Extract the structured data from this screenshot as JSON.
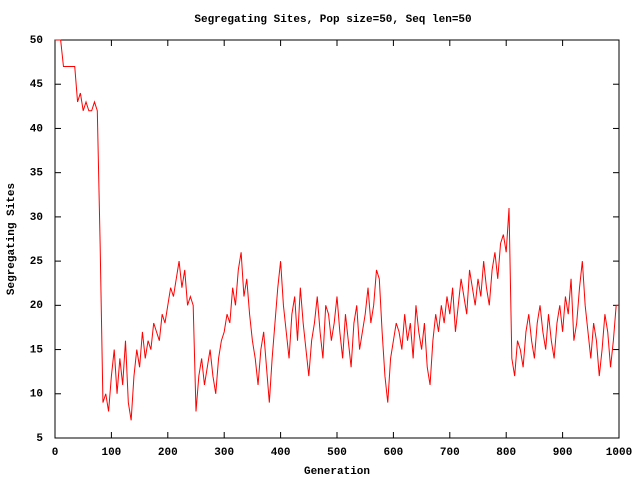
{
  "chart_data": {
    "type": "line",
    "title": "Segregating Sites, Pop size=50, Seq len=50",
    "xlabel": "Generation",
    "ylabel": "Segregating Sites",
    "x": [
      0,
      5,
      10,
      15,
      20,
      25,
      30,
      35,
      40,
      45,
      50,
      55,
      60,
      65,
      70,
      75,
      80,
      85,
      90,
      95,
      100,
      105,
      110,
      115,
      120,
      125,
      130,
      135,
      140,
      145,
      150,
      155,
      160,
      165,
      170,
      175,
      180,
      185,
      190,
      195,
      200,
      205,
      210,
      215,
      220,
      225,
      230,
      235,
      240,
      245,
      250,
      255,
      260,
      265,
      270,
      275,
      280,
      285,
      290,
      295,
      300,
      305,
      310,
      315,
      320,
      325,
      330,
      335,
      340,
      345,
      350,
      355,
      360,
      365,
      370,
      375,
      380,
      385,
      390,
      395,
      400,
      405,
      410,
      415,
      420,
      425,
      430,
      435,
      440,
      445,
      450,
      455,
      460,
      465,
      470,
      475,
      480,
      485,
      490,
      495,
      500,
      505,
      510,
      515,
      520,
      525,
      530,
      535,
      540,
      545,
      550,
      555,
      560,
      565,
      570,
      575,
      580,
      585,
      590,
      595,
      600,
      605,
      610,
      615,
      620,
      625,
      630,
      635,
      640,
      645,
      650,
      655,
      660,
      665,
      670,
      675,
      680,
      685,
      690,
      695,
      700,
      705,
      710,
      715,
      720,
      725,
      730,
      735,
      740,
      745,
      750,
      755,
      760,
      765,
      770,
      775,
      780,
      785,
      790,
      795,
      800,
      805,
      810,
      815,
      820,
      825,
      830,
      835,
      840,
      845,
      850,
      855,
      860,
      865,
      870,
      875,
      880,
      885,
      890,
      895,
      900,
      905,
      910,
      915,
      920,
      925,
      930,
      935,
      940,
      945,
      950,
      955,
      960,
      965,
      970,
      975,
      980,
      985,
      990,
      995,
      1000
    ],
    "series": [
      {
        "color": "#ff0000",
        "values": [
          50,
          50,
          50,
          47,
          47,
          47,
          47,
          47,
          43,
          44,
          42,
          43,
          42,
          42,
          43,
          42,
          27,
          9,
          10,
          8,
          12,
          15,
          10,
          14,
          11,
          16,
          9,
          7,
          12,
          15,
          13,
          17,
          14,
          16,
          15,
          18,
          17,
          16,
          19,
          18,
          20,
          22,
          21,
          23,
          25,
          22,
          24,
          20,
          21,
          20,
          8,
          12,
          14,
          11,
          13,
          15,
          12,
          10,
          14,
          16,
          17,
          19,
          18,
          22,
          20,
          24,
          26,
          21,
          23,
          19,
          16,
          14,
          11,
          15,
          17,
          13,
          9,
          14,
          18,
          22,
          25,
          20,
          17,
          14,
          19,
          21,
          16,
          22,
          18,
          15,
          12,
          16,
          18,
          21,
          17,
          14,
          20,
          19,
          16,
          18,
          21,
          17,
          14,
          19,
          16,
          13,
          18,
          20,
          15,
          17,
          19,
          22,
          18,
          20,
          24,
          23,
          17,
          12,
          9,
          14,
          16,
          18,
          17,
          15,
          19,
          16,
          18,
          14,
          20,
          17,
          15,
          18,
          13,
          11,
          16,
          19,
          17,
          20,
          18,
          21,
          19,
          22,
          17,
          20,
          23,
          21,
          19,
          24,
          22,
          20,
          23,
          21,
          25,
          22,
          20,
          24,
          26,
          23,
          27,
          28,
          26,
          31,
          14,
          12,
          16,
          15,
          13,
          17,
          19,
          16,
          14,
          18,
          20,
          17,
          15,
          19,
          16,
          14,
          18,
          20,
          17,
          21,
          19,
          23,
          16,
          18,
          22,
          25,
          20,
          17,
          14,
          18,
          16,
          12,
          15,
          19,
          17,
          13,
          16,
          20,
          20
        ]
      }
    ],
    "xlim": [
      0,
      1000
    ],
    "xticks": [
      0,
      100,
      200,
      300,
      400,
      500,
      600,
      700,
      800,
      900,
      1000
    ],
    "ylim": [
      5,
      50
    ],
    "yticks": [
      5,
      10,
      15,
      20,
      25,
      30,
      35,
      40,
      45,
      50
    ]
  }
}
